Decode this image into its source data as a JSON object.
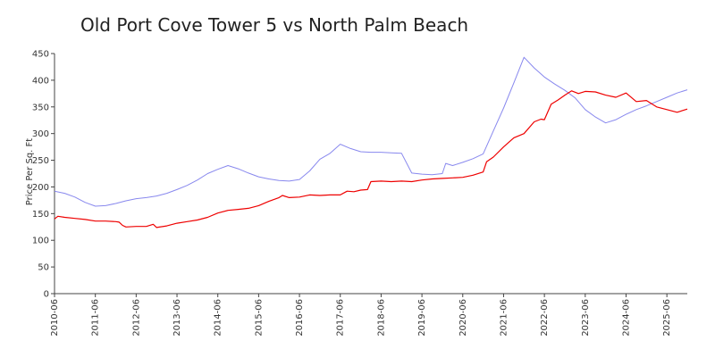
{
  "chart_data": {
    "type": "line",
    "title": "Old Port Cove Tower 5 vs North Palm Beach",
    "xlabel": "",
    "ylabel": "Price Per Sq. Ft",
    "ylim": [
      0,
      450
    ],
    "yticks": [
      0,
      50,
      100,
      150,
      200,
      250,
      300,
      350,
      400,
      450
    ],
    "xticks": [
      "2010-06",
      "2011-06",
      "2012-06",
      "2013-06",
      "2014-06",
      "2015-06",
      "2016-06",
      "2017-06",
      "2018-06",
      "2019-06",
      "2020-06",
      "2021-06",
      "2022-06",
      "2023-06",
      "2024-06",
      "2025-06"
    ],
    "xlim": [
      "2010-06",
      "2025-12"
    ],
    "grid": false,
    "legend": "none",
    "series": [
      {
        "color": "#8888ee",
        "points": [
          [
            "2010-06",
            192
          ],
          [
            "2010-09",
            188
          ],
          [
            "2010-12",
            181
          ],
          [
            "2011-03",
            171
          ],
          [
            "2011-06",
            164
          ],
          [
            "2011-09",
            165
          ],
          [
            "2011-12",
            169
          ],
          [
            "2012-03",
            174
          ],
          [
            "2012-06",
            178
          ],
          [
            "2012-09",
            180
          ],
          [
            "2012-12",
            183
          ],
          [
            "2013-03",
            188
          ],
          [
            "2013-06",
            195
          ],
          [
            "2013-09",
            203
          ],
          [
            "2013-12",
            213
          ],
          [
            "2014-03",
            225
          ],
          [
            "2014-06",
            233
          ],
          [
            "2014-09",
            240
          ],
          [
            "2014-12",
            234
          ],
          [
            "2015-03",
            226
          ],
          [
            "2015-06",
            219
          ],
          [
            "2015-09",
            215
          ],
          [
            "2015-12",
            212
          ],
          [
            "2016-03",
            211
          ],
          [
            "2016-06",
            214
          ],
          [
            "2016-09",
            230
          ],
          [
            "2016-12",
            252
          ],
          [
            "2017-03",
            263
          ],
          [
            "2017-06",
            280
          ],
          [
            "2017-09",
            272
          ],
          [
            "2017-12",
            266
          ],
          [
            "2018-03",
            265
          ],
          [
            "2018-06",
            265
          ],
          [
            "2018-09",
            264
          ],
          [
            "2018-12",
            263
          ],
          [
            "2019-03",
            226
          ],
          [
            "2019-06",
            224
          ],
          [
            "2019-09",
            223
          ],
          [
            "2019-12",
            225
          ],
          [
            "2020-01",
            244
          ],
          [
            "2020-03",
            240
          ],
          [
            "2020-06",
            246
          ],
          [
            "2020-09",
            253
          ],
          [
            "2020-12",
            262
          ],
          [
            "2021-03",
            305
          ],
          [
            "2021-06",
            348
          ],
          [
            "2021-09",
            395
          ],
          [
            "2021-12",
            443
          ],
          [
            "2022-03",
            423
          ],
          [
            "2022-06",
            406
          ],
          [
            "2022-09",
            393
          ],
          [
            "2022-12",
            381
          ],
          [
            "2023-03",
            367
          ],
          [
            "2023-06",
            345
          ],
          [
            "2023-09",
            331
          ],
          [
            "2023-12",
            320
          ],
          [
            "2024-03",
            326
          ],
          [
            "2024-06",
            336
          ],
          [
            "2024-09",
            345
          ],
          [
            "2024-12",
            352
          ],
          [
            "2025-03",
            360
          ],
          [
            "2025-06",
            368
          ],
          [
            "2025-09",
            376
          ],
          [
            "2025-12",
            382
          ]
        ]
      },
      {
        "color": "#ee0000",
        "points": [
          [
            "2010-06",
            140
          ],
          [
            "2010-07",
            145
          ],
          [
            "2010-09",
            143
          ],
          [
            "2010-12",
            141
          ],
          [
            "2011-03",
            139
          ],
          [
            "2011-06",
            136
          ],
          [
            "2011-09",
            136
          ],
          [
            "2011-12",
            135
          ],
          [
            "2012-01",
            134
          ],
          [
            "2012-02",
            128
          ],
          [
            "2012-03",
            125
          ],
          [
            "2012-06",
            126
          ],
          [
            "2012-09",
            126
          ],
          [
            "2012-11",
            130
          ],
          [
            "2012-12",
            124
          ],
          [
            "2013-03",
            127
          ],
          [
            "2013-06",
            132
          ],
          [
            "2013-09",
            135
          ],
          [
            "2013-12",
            138
          ],
          [
            "2014-03",
            143
          ],
          [
            "2014-06",
            151
          ],
          [
            "2014-09",
            156
          ],
          [
            "2014-12",
            158
          ],
          [
            "2015-03",
            160
          ],
          [
            "2015-06",
            165
          ],
          [
            "2015-09",
            173
          ],
          [
            "2015-12",
            180
          ],
          [
            "2016-01",
            184
          ],
          [
            "2016-03",
            180
          ],
          [
            "2016-06",
            181
          ],
          [
            "2016-09",
            185
          ],
          [
            "2016-12",
            184
          ],
          [
            "2017-03",
            185
          ],
          [
            "2017-06",
            185
          ],
          [
            "2017-08",
            192
          ],
          [
            "2017-10",
            191
          ],
          [
            "2017-12",
            194
          ],
          [
            "2018-02",
            195
          ],
          [
            "2018-03",
            210
          ],
          [
            "2018-06",
            211
          ],
          [
            "2018-09",
            210
          ],
          [
            "2018-12",
            211
          ],
          [
            "2019-03",
            210
          ],
          [
            "2019-06",
            213
          ],
          [
            "2019-09",
            215
          ],
          [
            "2019-12",
            216
          ],
          [
            "2020-03",
            217
          ],
          [
            "2020-06",
            218
          ],
          [
            "2020-09",
            222
          ],
          [
            "2020-12",
            228
          ],
          [
            "2021-01",
            247
          ],
          [
            "2021-03",
            256
          ],
          [
            "2021-06",
            275
          ],
          [
            "2021-09",
            292
          ],
          [
            "2021-12",
            300
          ],
          [
            "2022-03",
            322
          ],
          [
            "2022-05",
            327
          ],
          [
            "2022-06",
            326
          ],
          [
            "2022-08",
            355
          ],
          [
            "2022-10",
            363
          ],
          [
            "2022-12",
            372
          ],
          [
            "2023-02",
            380
          ],
          [
            "2023-04",
            375
          ],
          [
            "2023-06",
            379
          ],
          [
            "2023-09",
            378
          ],
          [
            "2023-12",
            372
          ],
          [
            "2024-03",
            368
          ],
          [
            "2024-06",
            376
          ],
          [
            "2024-09",
            360
          ],
          [
            "2024-12",
            362
          ],
          [
            "2025-03",
            350
          ],
          [
            "2025-06",
            345
          ],
          [
            "2025-09",
            340
          ],
          [
            "2025-12",
            346
          ]
        ]
      }
    ]
  }
}
